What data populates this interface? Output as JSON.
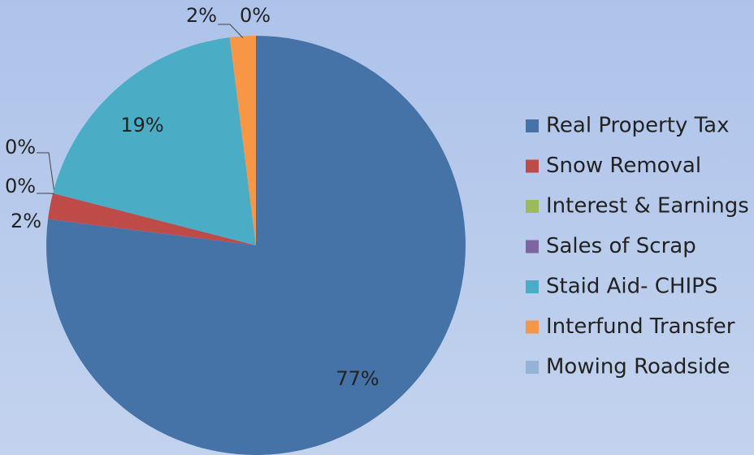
{
  "chart_data": {
    "type": "pie",
    "categories": [
      "Real Property Tax",
      "Snow Removal",
      "Interest & Earnings",
      "Sales of Scrap",
      "Staid Aid- CHIPS",
      "Interfund Transfer",
      "Mowing Roadside"
    ],
    "values": [
      77,
      2,
      0,
      0,
      19,
      2,
      0
    ],
    "value_labels": [
      "77%",
      "2%",
      "0%",
      "0%",
      "19%",
      "2%",
      "0%"
    ],
    "colors": [
      "#4572a7",
      "#be4b48",
      "#9bbb59",
      "#7e64a0",
      "#4aacc5",
      "#f79646",
      "#94b3d6"
    ],
    "legend": "right"
  }
}
